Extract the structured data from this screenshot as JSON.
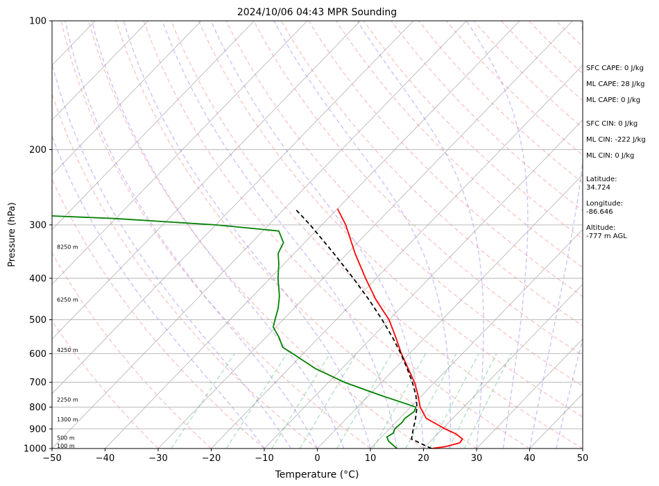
{
  "chart_data": {
    "type": "line",
    "title": "2024/10/06 04:43 MPR Sounding",
    "xlabel": "Temperature (°C)",
    "ylabel": "Pressure (hPa)",
    "xlim": [
      -50,
      50
    ],
    "ylim": [
      1000,
      100
    ],
    "y_scale": "log",
    "grid": true,
    "x_ticks": [
      -50,
      -40,
      -30,
      -20,
      -10,
      0,
      10,
      20,
      30,
      40,
      50
    ],
    "y_ticks": [
      100,
      200,
      300,
      400,
      500,
      600,
      700,
      800,
      900,
      1000
    ],
    "series": [
      {
        "color": "#ff0000",
        "points": [
          [
            1000,
            21.5
          ],
          [
            990,
            23.8
          ],
          [
            970,
            25.8
          ],
          [
            950,
            25.6
          ],
          [
            925,
            23.5
          ],
          [
            900,
            20.5
          ],
          [
            850,
            15.0
          ],
          [
            800,
            11.8
          ],
          [
            750,
            9.2
          ],
          [
            700,
            6.2
          ],
          [
            650,
            2.5
          ],
          [
            600,
            -1.5
          ],
          [
            550,
            -5.5
          ],
          [
            500,
            -10.0
          ],
          [
            450,
            -16.0
          ],
          [
            400,
            -22.0
          ],
          [
            350,
            -28.5
          ],
          [
            300,
            -35.5
          ],
          [
            275,
            -40.0
          ]
        ]
      },
      {
        "color": "#008000",
        "points": [
          [
            1000,
            15.0
          ],
          [
            980,
            13.5
          ],
          [
            960,
            12.0
          ],
          [
            940,
            11.0
          ],
          [
            920,
            11.5
          ],
          [
            900,
            11.0
          ],
          [
            870,
            11.2
          ],
          [
            850,
            11.0
          ],
          [
            820,
            11.5
          ],
          [
            800,
            11.0
          ],
          [
            750,
            2.0
          ],
          [
            700,
            -7.0
          ],
          [
            650,
            -15.0
          ],
          [
            600,
            -22.0
          ],
          [
            580,
            -25.0
          ],
          [
            550,
            -27.5
          ],
          [
            520,
            -30.5
          ],
          [
            500,
            -31.5
          ],
          [
            470,
            -33.0
          ],
          [
            440,
            -35.0
          ],
          [
            400,
            -38.5
          ],
          [
            370,
            -41.0
          ],
          [
            350,
            -43.0
          ],
          [
            330,
            -44.0
          ],
          [
            310,
            -47.0
          ],
          [
            300,
            -60.0
          ],
          [
            290,
            -80.0
          ],
          [
            285,
            -95.0
          ]
        ]
      },
      {
        "color": "#000000",
        "style": "dashed",
        "points": [
          [
            1000,
            21.5
          ],
          [
            950,
            16.0
          ],
          [
            900,
            14.5
          ],
          [
            850,
            13.0
          ],
          [
            800,
            11.2
          ],
          [
            750,
            8.8
          ],
          [
            700,
            5.8
          ],
          [
            650,
            2.3
          ],
          [
            600,
            -1.6
          ],
          [
            550,
            -6.1
          ],
          [
            500,
            -11.3
          ],
          [
            450,
            -17.3
          ],
          [
            400,
            -24.3
          ],
          [
            350,
            -32.5
          ],
          [
            300,
            -42.2
          ],
          [
            275,
            -48.0
          ]
        ]
      }
    ],
    "height_labels": [
      {
        "p": 1000,
        "text": "100 m"
      },
      {
        "p": 958,
        "text": "500 m"
      },
      {
        "p": 867,
        "text": "1300 m"
      },
      {
        "p": 780,
        "text": "2250 m"
      },
      {
        "p": 597,
        "text": "4250 m"
      },
      {
        "p": 455,
        "text": "6250 m"
      },
      {
        "p": 343,
        "text": "8250 m"
      }
    ],
    "reference_line_colors": {
      "isotherms": "#b0b0b0",
      "dry_adiabats": "#f08080",
      "moist_adiabats": "#7b68ee",
      "mixing_ratio": "#3cb371"
    },
    "side_panel": [
      "SFC CAPE: 0 J/kg",
      "ML CAPE: 28 J/kg",
      "ML CAPE: 0 J/kg",
      "SFC CIN: 0 J/kg",
      "ML CIN: -222 J/kg",
      "ML CIN: 0 J/kg",
      "Latitude:\n34.724",
      "Longitude:\n-86.646",
      "Altitude:\n-777 m AGL"
    ]
  }
}
